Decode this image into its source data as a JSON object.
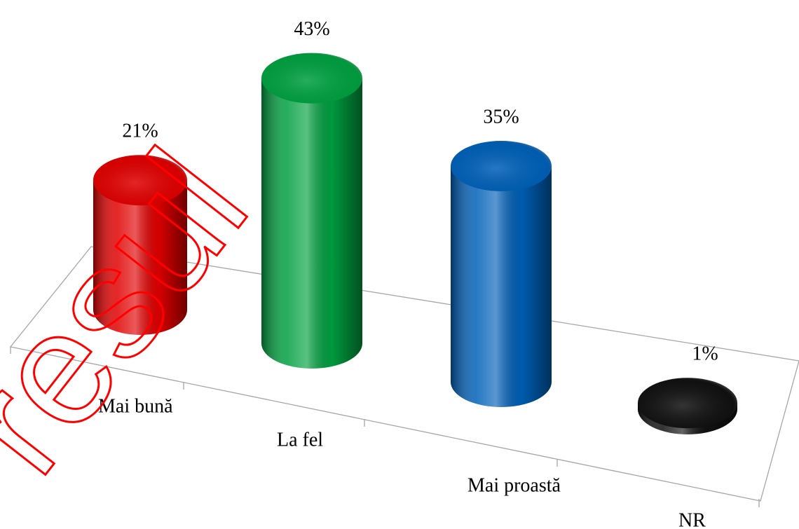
{
  "chart_data": {
    "type": "bar3d",
    "categories": [
      "Mai bună",
      "La fel",
      "Mai proastă",
      "NR"
    ],
    "values": [
      21,
      43,
      35,
      1
    ],
    "value_labels": [
      "21%",
      "43%",
      "35%",
      "1%"
    ],
    "colors": [
      "#e00000",
      "#00a040",
      "#0060b8",
      "#111111"
    ],
    "watermark": "resul"
  }
}
